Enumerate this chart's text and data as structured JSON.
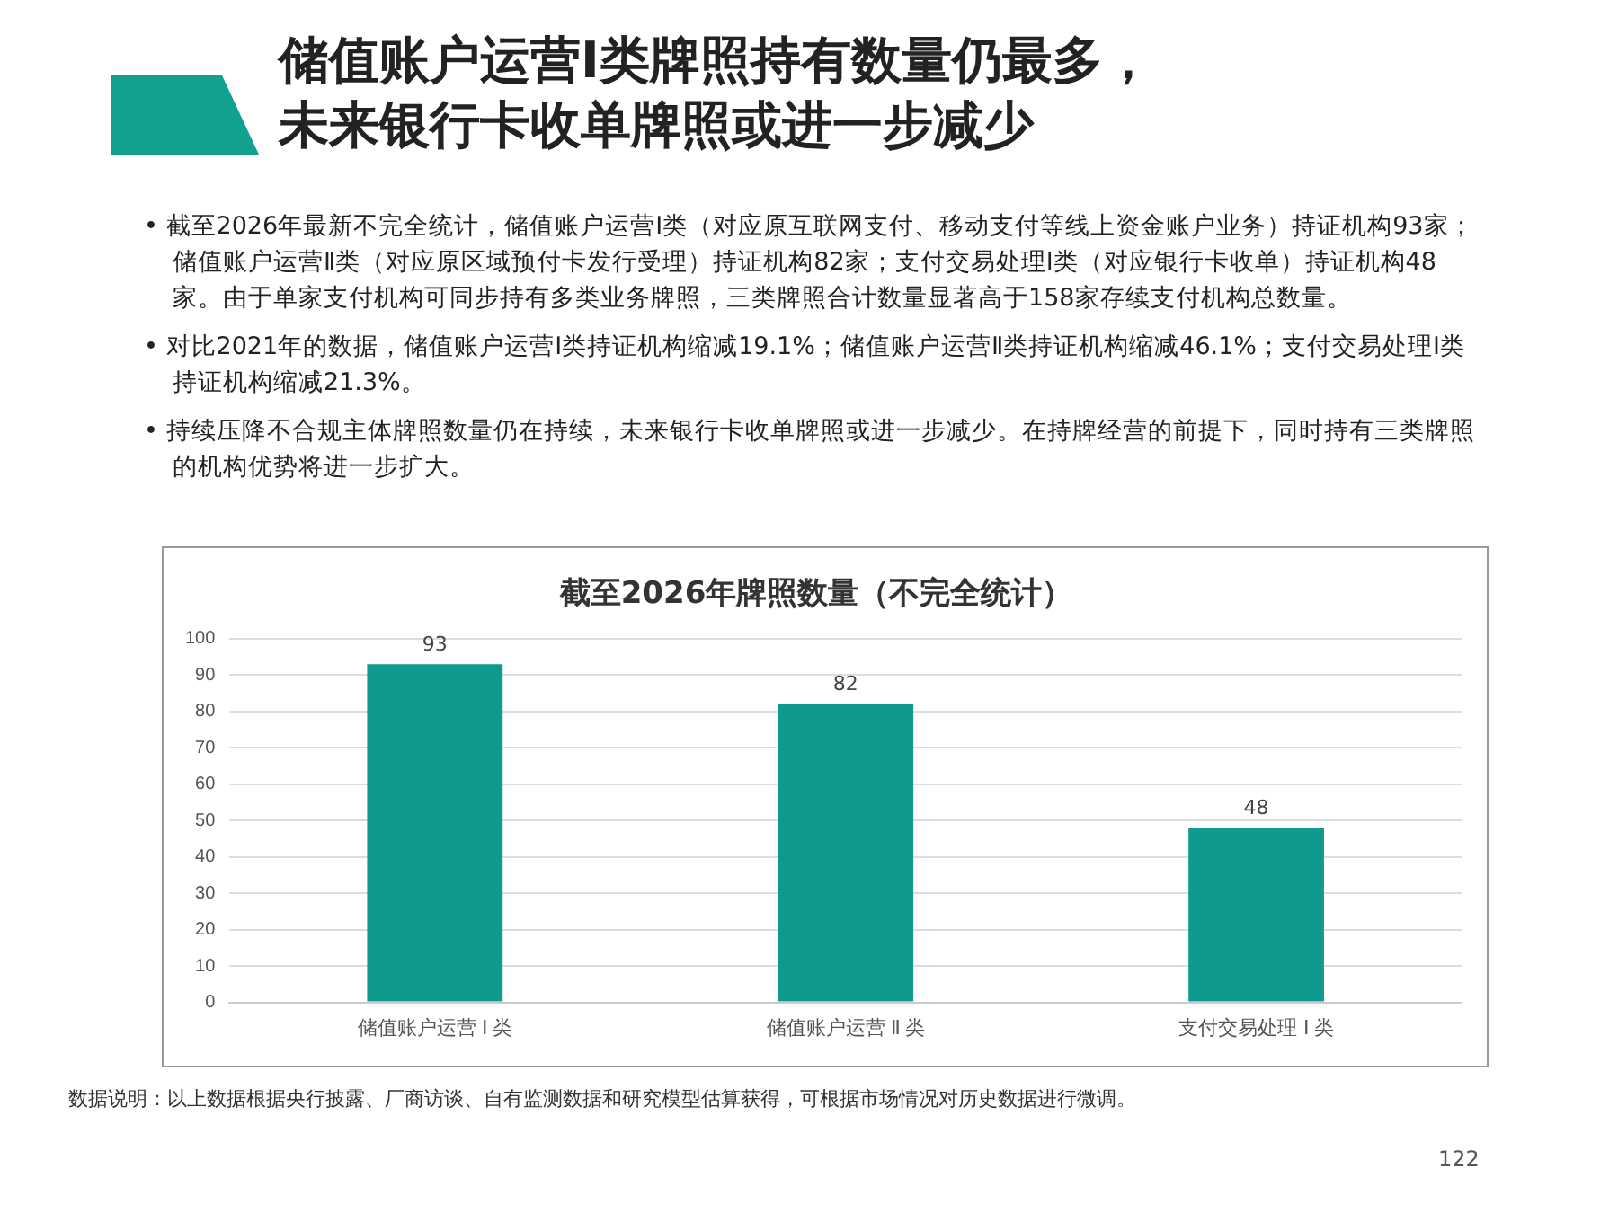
{
  "chart_data": {
    "type": "bar",
    "title": "截至2026年牌照数量（不完全统计）",
    "categories": [
      "储值账户运营 Ⅰ 类",
      "储值账户运营 Ⅱ 类",
      "支付交易处理 Ⅰ 类"
    ],
    "values": [
      93,
      82,
      48
    ],
    "color": "#0e9a8f",
    "ylim": [
      0,
      100
    ],
    "yticks": [
      0,
      10,
      20,
      30,
      40,
      50,
      60,
      70,
      80,
      90,
      100
    ],
    "grid": "y",
    "legend": false,
    "data_labels": true,
    "annotations": [
      "储值账户运营Ⅰ类牌照持有数量仍最多，",
      "未来银行卡收单牌照或进一步减少",
      "• 截至2026年最新不完全统计，储值账户运营Ⅰ类（对应原互联网支付、移动支付等线上资金账户业务）持证机构93家；储值账户运营Ⅱ类（对应原区域预付卡发行受理）持证机构82家；支付交易处理Ⅰ类（对应银行卡收单）持证机构48家。由于单家支付机构可同步持有多类业务牌照，三类牌照合计数量显著高于158家存续支付机构总数量。",
      "• 对比2021年的数据，储值账户运营Ⅰ类持证机构缩减19.1%；储值账户运营Ⅱ类持证机构缩减46.1%；支付交易处理Ⅰ类持证机构缩减21.3%。",
      "• 持续压降不合规主体牌照数量仍在持续，未来银行卡收单牌照或进一步减少。在持牌经营的前提下，同时持有三类牌照的机构优势将进一步扩大。",
      "数据说明：以上数据根据央行披露、厂商访谈、自有监测数据和研究模型估算获得，可根据市场情况对历史数据进行微调。",
      "122"
    ]
  }
}
